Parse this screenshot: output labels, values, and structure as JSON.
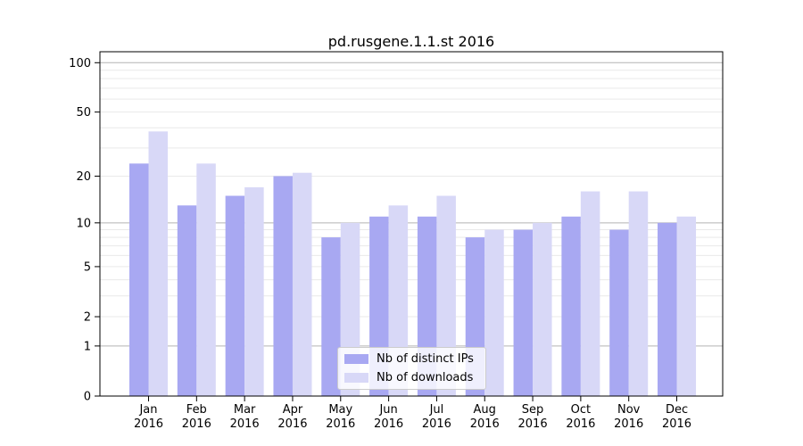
{
  "chart_data": {
    "type": "bar",
    "title": "pd.rusgene.1.1.st 2016",
    "scale": "log1p",
    "grid": "horizontal",
    "legend_position": "bottom-center",
    "x_year": "2016",
    "categories": [
      "Jan",
      "Feb",
      "Mar",
      "Apr",
      "May",
      "Jun",
      "Jul",
      "Aug",
      "Sep",
      "Oct",
      "Nov",
      "Dec"
    ],
    "series": [
      {
        "name": "Nb of distinct IPs",
        "color": "#a8a8f2",
        "values": [
          24,
          13,
          15,
          20,
          8,
          11,
          11,
          8,
          9,
          11,
          9,
          10
        ]
      },
      {
        "name": "Nb of downloads",
        "color": "#d8d8f7",
        "values": [
          38,
          24,
          17,
          21,
          10,
          13,
          15,
          9,
          10,
          16,
          16,
          11
        ]
      }
    ],
    "y_ticks": [
      0,
      1,
      2,
      5,
      10,
      20,
      50,
      100
    ],
    "y_major_gridlines": [
      1,
      10,
      100
    ],
    "ylim": [
      0,
      116
    ],
    "xlabel": "",
    "ylabel": ""
  },
  "colors": {
    "bar_ips": "#a8a8f2",
    "bar_downloads": "#d8d8f7",
    "grid_major": "#b3b3b3",
    "grid_minor": "#e9e9e9",
    "axis": "#000000",
    "text": "#000000"
  }
}
